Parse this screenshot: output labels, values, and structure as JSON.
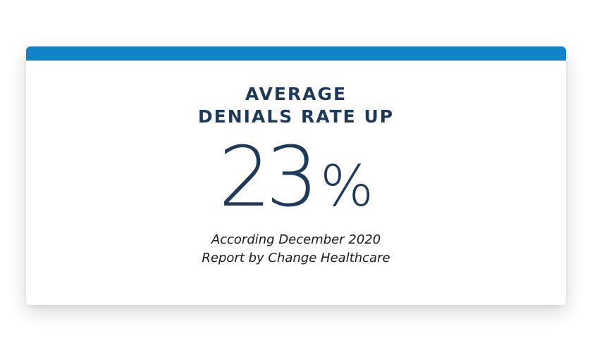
{
  "card": {
    "accent_color": "#1282c8",
    "text_color": "#1d3a5c",
    "headline_line1": "AVERAGE",
    "headline_line2": "DENIALS RATE UP",
    "stat_number": "23",
    "stat_unit": "%",
    "source_line1": "According December 2020",
    "source_line2": "Report by Change Healthcare"
  }
}
